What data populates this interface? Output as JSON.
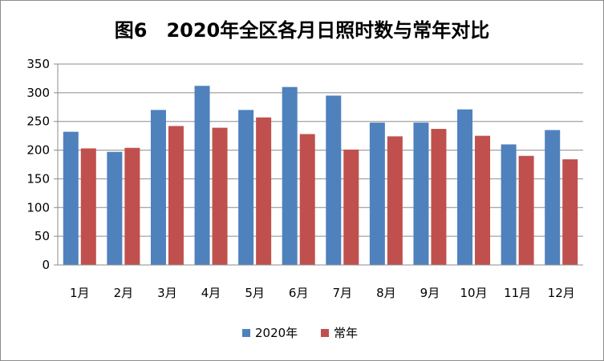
{
  "chart_data": {
    "type": "bar",
    "title": "图6　2020年全区各月日照时数与常年对比",
    "categories": [
      "1月",
      "2月",
      "3月",
      "4月",
      "5月",
      "6月",
      "7月",
      "8月",
      "9月",
      "10月",
      "11月",
      "12月"
    ],
    "series": [
      {
        "name": "2020年",
        "color": "#4f81bd",
        "values": [
          232,
          197,
          270,
          312,
          270,
          310,
          295,
          248,
          248,
          271,
          210,
          235
        ]
      },
      {
        "name": "常年",
        "color": "#c0504d",
        "values": [
          203,
          204,
          242,
          239,
          257,
          228,
          201,
          224,
          237,
          225,
          190,
          184
        ]
      }
    ],
    "ylim": [
      0,
      350
    ],
    "yticks": [
      0,
      50,
      100,
      150,
      200,
      250,
      300,
      350
    ],
    "xlabel": "",
    "ylabel": "",
    "legend": "bottom"
  }
}
